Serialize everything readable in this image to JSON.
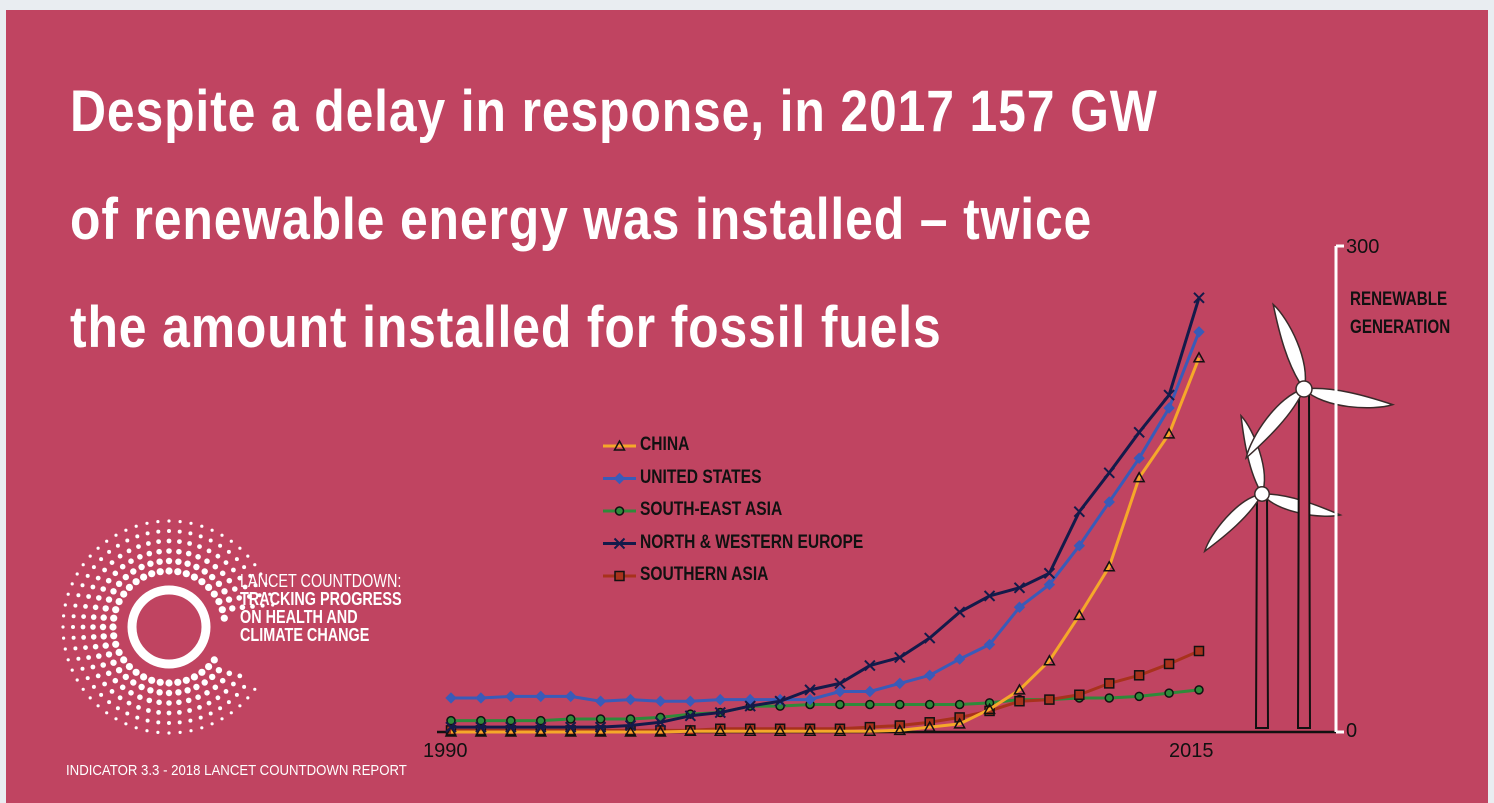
{
  "headline": {
    "line1": "Despite a delay in response, in 2017 157 GW",
    "line2": "of renewable energy was installed – twice",
    "line3": "the amount installed for fossil fuels"
  },
  "logo": {
    "line1": "LANCET COUNTDOWN:",
    "line2": "TRACKING PROGRESS",
    "line3": "ON HEALTH AND",
    "line4": "CLIMATE CHANGE"
  },
  "footer": "INDICATOR 3.3 - 2018 LANCET COUNTDOWN REPORT",
  "colors": {
    "background": "#c04461",
    "china": "#f5a82a",
    "united_states": "#3a5bb8",
    "south_east_asia": "#2f8a3a",
    "north_western_europe": "#141a4a",
    "southern_asia": "#a8321c"
  },
  "chart_data": {
    "type": "line",
    "ylabel": "RENEWABLE GENERATION",
    "ylim": [
      0,
      300
    ],
    "y_ticks": [
      "300",
      "0"
    ],
    "x_ticks": [
      "1990",
      "2015"
    ],
    "x": [
      1990,
      1991,
      1992,
      1993,
      1994,
      1995,
      1996,
      1997,
      1998,
      1999,
      2000,
      2001,
      2002,
      2003,
      2004,
      2005,
      2006,
      2007,
      2008,
      2009,
      2010,
      2011,
      2012,
      2013,
      2014,
      2015
    ],
    "series": [
      {
        "name": "CHINA",
        "key": "china",
        "marker": "triangle",
        "values": [
          0,
          0,
          0,
          0,
          0,
          0,
          0,
          0,
          0.5,
          0.5,
          0.5,
          0.5,
          0.5,
          0.5,
          0.5,
          1,
          3,
          5,
          14,
          26,
          44,
          72,
          102,
          157,
          184,
          231
        ]
      },
      {
        "name": "UNITED STATES",
        "key": "united_states",
        "marker": "diamond",
        "values": [
          21,
          21,
          22,
          22,
          22,
          19,
          20,
          19,
          19,
          20,
          20,
          20,
          20,
          25,
          25,
          30,
          35,
          45,
          54,
          77,
          91,
          115,
          142,
          169,
          200,
          247
        ]
      },
      {
        "name": "SOUTH-EAST ASIA",
        "key": "south_east_asia",
        "marker": "circle",
        "values": [
          7,
          7,
          7,
          7,
          8,
          8,
          8,
          9,
          11,
          12,
          16,
          16,
          17,
          17,
          17,
          17,
          17,
          17,
          18,
          20,
          20,
          21,
          21,
          22,
          24,
          26
        ]
      },
      {
        "name": "NORTH & WESTERN EUROPE",
        "key": "north_western_europe",
        "marker": "x",
        "values": [
          3,
          3,
          3,
          3,
          3,
          3,
          4,
          6,
          10,
          12,
          16,
          19,
          26,
          30,
          41,
          46,
          58,
          74,
          84,
          89,
          98,
          136,
          160,
          185,
          208,
          268
        ]
      },
      {
        "name": "SOUTHERN ASIA",
        "key": "southern_asia",
        "marker": "square",
        "values": [
          1,
          1,
          1,
          1,
          1,
          1,
          1,
          1,
          1,
          2,
          2,
          2,
          2,
          2,
          3,
          4,
          6,
          9,
          13,
          19,
          20,
          23,
          30,
          35,
          42,
          50
        ]
      }
    ]
  }
}
